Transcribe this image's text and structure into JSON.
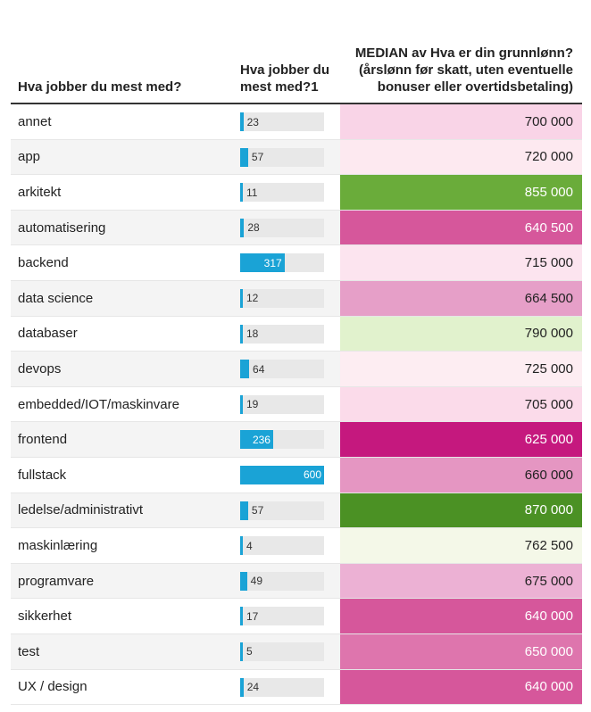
{
  "chart_data": {
    "type": "table",
    "headers": {
      "category": "Hva jobber du mest med?",
      "count": "Hva jobber du mest med?1",
      "median": "MEDIAN av Hva er din grunnlønn? (årslønn før skatt, uten eventuelle bonuser eller overtidsbetaling)"
    },
    "count_max": 600,
    "rows": [
      {
        "category": "annet",
        "count": 23,
        "median": "700 000",
        "median_value": 700000,
        "color": "#f9d4e7",
        "text_color": "#222222"
      },
      {
        "category": "app",
        "count": 57,
        "median": "720 000",
        "median_value": 720000,
        "color": "#fde9f0",
        "text_color": "#222222"
      },
      {
        "category": "arkitekt",
        "count": 11,
        "median": "855 000",
        "median_value": 855000,
        "color": "#6aac3a",
        "text_color": "#ffffff"
      },
      {
        "category": "automatisering",
        "count": 28,
        "median": "640 500",
        "median_value": 640500,
        "color": "#d6579b",
        "text_color": "#ffffff"
      },
      {
        "category": "backend",
        "count": 317,
        "median": "715 000",
        "median_value": 715000,
        "color": "#fce4ef",
        "text_color": "#222222"
      },
      {
        "category": "data science",
        "count": 12,
        "median": "664 500",
        "median_value": 664500,
        "color": "#e69fc8",
        "text_color": "#222222"
      },
      {
        "category": "databaser",
        "count": 18,
        "median": "790 000",
        "median_value": 790000,
        "color": "#e1f2cd",
        "text_color": "#222222"
      },
      {
        "category": "devops",
        "count": 64,
        "median": "725 000",
        "median_value": 725000,
        "color": "#fdedf2",
        "text_color": "#222222"
      },
      {
        "category": "embedded/IOT/maskinvare",
        "count": 19,
        "median": "705 000",
        "median_value": 705000,
        "color": "#fbdbea",
        "text_color": "#222222"
      },
      {
        "category": "frontend",
        "count": 236,
        "median": "625 000",
        "median_value": 625000,
        "color": "#c5187e",
        "text_color": "#ffffff"
      },
      {
        "category": "fullstack",
        "count": 600,
        "median": "660 000",
        "median_value": 660000,
        "color": "#e596c2",
        "text_color": "#222222"
      },
      {
        "category": "ledelse/administrativt",
        "count": 57,
        "median": "870 000",
        "median_value": 870000,
        "color": "#4b9124",
        "text_color": "#ffffff"
      },
      {
        "category": "maskinlæring",
        "count": 4,
        "median": "762 500",
        "median_value": 762500,
        "color": "#f4f8e8",
        "text_color": "#222222"
      },
      {
        "category": "programvare",
        "count": 49,
        "median": "675 000",
        "median_value": 675000,
        "color": "#ecb1d4",
        "text_color": "#222222"
      },
      {
        "category": "sikkerhet",
        "count": 17,
        "median": "640 000",
        "median_value": 640000,
        "color": "#d6579b",
        "text_color": "#ffffff"
      },
      {
        "category": "test",
        "count": 5,
        "median": "650 000",
        "median_value": 650000,
        "color": "#de75ad",
        "text_color": "#ffffff"
      },
      {
        "category": "UX / design",
        "count": 24,
        "median": "640 000",
        "median_value": 640000,
        "color": "#d6579b",
        "text_color": "#ffffff"
      }
    ]
  }
}
